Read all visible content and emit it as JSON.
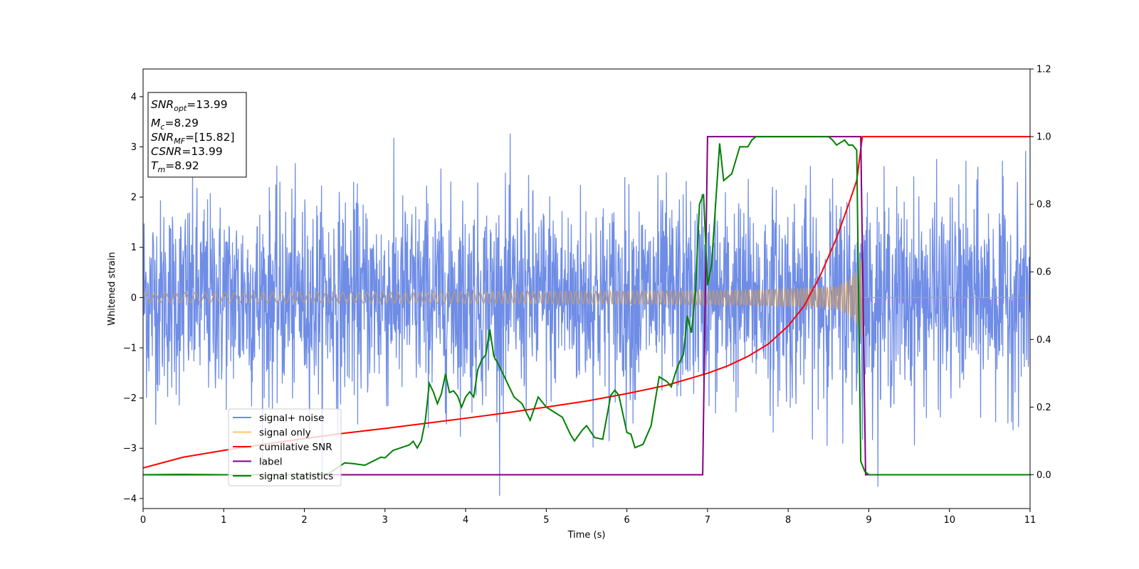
{
  "chart_data": {
    "type": "line",
    "xlabel": "Time (s)",
    "ylabel": "Whitened strain",
    "xlim": [
      0,
      11
    ],
    "ylim": [
      -4.2,
      4.55
    ],
    "y2lim": [
      -0.1,
      1.2
    ],
    "xticks": [
      0,
      1,
      2,
      3,
      4,
      5,
      6,
      7,
      8,
      9,
      10,
      11
    ],
    "yticks": [
      -4,
      -3,
      -2,
      -1,
      0,
      1,
      2,
      3,
      4
    ],
    "y2ticks": [
      "0.0",
      "0.2",
      "0.4",
      "0.6",
      "0.8",
      "1.0",
      "1.2"
    ],
    "grid": false,
    "legend_position": "lower-left",
    "annotation": {
      "snr_opt": {
        "base": "SNR",
        "sub": "opt",
        "value": "=13.99"
      },
      "mc": {
        "base": "M",
        "sub": "c",
        "value": "=8.29"
      },
      "snr_mf": {
        "base": "SNR",
        "sub": "MF",
        "value": "=[15.82]"
      },
      "csnr": {
        "base": "CSNR",
        "value": "=13.99"
      },
      "tm": {
        "base": "T",
        "sub": "m",
        "value": "=8.92"
      }
    },
    "series": [
      {
        "name": "signal+ noise",
        "color": "#6f8de6",
        "axis": "left",
        "kind": "whitened noise, std ~1.0, peaks ~ +/-3.5",
        "noise_std": 1.0
      },
      {
        "name": "signal only",
        "color": "#ffc46b",
        "axis": "left",
        "kind": "chirp",
        "t_start": 0.0,
        "t_merge": 8.92,
        "amp_start": 0.1,
        "amp_merge": 1.0,
        "f_start": 16,
        "f_merge": 60
      },
      {
        "name": "cumilative SNR",
        "color": "#ff0000",
        "axis": "right",
        "x": [
          0,
          0.5,
          1,
          1.5,
          2,
          2.5,
          3,
          3.5,
          4,
          4.5,
          5,
          5.5,
          6,
          6.5,
          7,
          7.25,
          7.5,
          7.75,
          8,
          8.2,
          8.4,
          8.6,
          8.75,
          8.85,
          8.92,
          11
        ],
        "y": [
          0.02,
          0.052,
          0.072,
          0.09,
          0.107,
          0.123,
          0.137,
          0.152,
          0.167,
          0.183,
          0.2,
          0.218,
          0.24,
          0.265,
          0.3,
          0.322,
          0.35,
          0.386,
          0.44,
          0.5,
          0.59,
          0.7,
          0.8,
          0.87,
          1.0,
          1.0
        ]
      },
      {
        "name": "label",
        "color": "#800080",
        "axis": "right",
        "x": [
          0,
          6.94,
          7.0,
          8.9,
          8.96,
          11
        ],
        "y": [
          0,
          0,
          1,
          1,
          0,
          0
        ]
      },
      {
        "name": "signal statistics",
        "color": "#008000",
        "axis": "right",
        "x": [
          0,
          0.5,
          1,
          1.5,
          2,
          2.3,
          2.5,
          2.6,
          2.75,
          2.85,
          2.95,
          3.0,
          3.1,
          3.2,
          3.3,
          3.35,
          3.4,
          3.45,
          3.5,
          3.55,
          3.6,
          3.65,
          3.7,
          3.75,
          3.8,
          3.85,
          3.9,
          3.95,
          4.0,
          4.05,
          4.1,
          4.15,
          4.2,
          4.25,
          4.3,
          4.35,
          4.4,
          4.5,
          4.6,
          4.7,
          4.8,
          4.9,
          5.0,
          5.1,
          5.2,
          5.3,
          5.35,
          5.45,
          5.5,
          5.6,
          5.7,
          5.8,
          5.85,
          5.9,
          6.0,
          6.05,
          6.1,
          6.2,
          6.3,
          6.4,
          6.5,
          6.55,
          6.6,
          6.65,
          6.7,
          6.75,
          6.8,
          6.85,
          6.9,
          6.95,
          7.0,
          7.05,
          7.1,
          7.15,
          7.2,
          7.3,
          7.4,
          7.5,
          7.55,
          7.6,
          7.7,
          7.8,
          8.0,
          8.2,
          8.4,
          8.5,
          8.55,
          8.6,
          8.7,
          8.75,
          8.8,
          8.85,
          8.9,
          8.95,
          9.0,
          11
        ],
        "y": [
          0.0,
          0.001,
          0.0,
          0.0,
          0.0,
          0.003,
          0.035,
          0.033,
          0.028,
          0.04,
          0.052,
          0.05,
          0.072,
          0.08,
          0.088,
          0.099,
          0.079,
          0.1,
          0.16,
          0.27,
          0.245,
          0.21,
          0.24,
          0.298,
          0.243,
          0.248,
          0.233,
          0.2,
          0.23,
          0.245,
          0.23,
          0.31,
          0.34,
          0.355,
          0.43,
          0.35,
          0.33,
          0.28,
          0.23,
          0.21,
          0.161,
          0.23,
          0.2,
          0.185,
          0.17,
          0.119,
          0.1,
          0.133,
          0.145,
          0.11,
          0.105,
          0.235,
          0.25,
          0.235,
          0.125,
          0.12,
          0.08,
          0.09,
          0.145,
          0.29,
          0.275,
          0.26,
          0.3,
          0.332,
          0.355,
          0.47,
          0.42,
          0.54,
          0.8,
          0.83,
          0.56,
          0.62,
          0.8,
          0.98,
          0.87,
          0.89,
          0.97,
          0.97,
          0.99,
          1.0,
          1.0,
          1.0,
          1.0,
          1.0,
          1.0,
          1.0,
          0.99,
          0.975,
          0.99,
          0.975,
          0.975,
          0.96,
          0.04,
          0.01,
          0.0,
          0.0
        ]
      }
    ]
  }
}
